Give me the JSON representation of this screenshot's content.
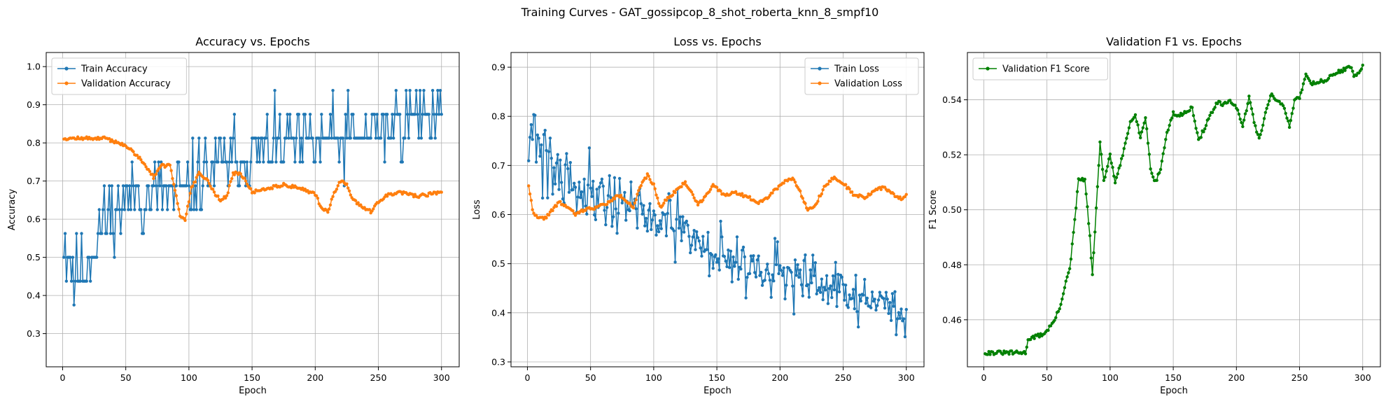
{
  "suptitle": "Training Curves - GAT_gossipcop_8_shot_roberta_knn_8_smpf10",
  "chart_data": [
    {
      "type": "line",
      "title": "Accuracy vs. Epochs",
      "xlabel": "Epoch",
      "ylabel": "Accuracy",
      "xlim": [
        -13,
        314
      ],
      "ylim": [
        0.213,
        1.037
      ],
      "xticks": [
        0,
        50,
        100,
        150,
        200,
        250,
        300
      ],
      "yticks": [
        0.3,
        0.4,
        0.5,
        0.6,
        0.7,
        0.8,
        0.9,
        1.0
      ],
      "ytick_labels": [
        "0.3",
        "0.4",
        "0.5",
        "0.6",
        "0.7",
        "0.8",
        "0.9",
        "1.0"
      ],
      "grid": true,
      "legend_position": "upper-left",
      "series": [
        {
          "name": "Train Accuracy",
          "color": "#1f77b4",
          "generator": "noisy",
          "seed": 11,
          "anchors": [
            [
              1,
              0.56
            ],
            [
              10,
              0.45
            ],
            [
              20,
              0.48
            ],
            [
              30,
              0.58
            ],
            [
              40,
              0.62
            ],
            [
              50,
              0.65
            ],
            [
              60,
              0.66
            ],
            [
              70,
              0.66
            ],
            [
              80,
              0.68
            ],
            [
              90,
              0.66
            ],
            [
              100,
              0.68
            ],
            [
              120,
              0.74
            ],
            [
              150,
              0.78
            ],
            [
              200,
              0.8
            ],
            [
              250,
              0.83
            ],
            [
              300,
              0.9
            ]
          ],
          "noise": [
            [
              1,
              0.1
            ],
            [
              60,
              0.09
            ],
            [
              100,
              0.085
            ],
            [
              300,
              0.07
            ]
          ],
          "steps": [
            0.0625,
            0.125,
            0.25,
            0.375,
            0.4375,
            0.5,
            0.5625,
            0.625,
            0.6875,
            0.75,
            0.8125,
            0.875,
            0.9375,
            1.0
          ]
        },
        {
          "name": "Validation Accuracy",
          "color": "#ff7f0e",
          "generator": "smooth",
          "seed": 12,
          "anchors": [
            [
              1,
              0.812
            ],
            [
              33,
              0.812
            ],
            [
              45,
              0.8
            ],
            [
              55,
              0.78
            ],
            [
              65,
              0.745
            ],
            [
              72,
              0.71
            ],
            [
              78,
              0.74
            ],
            [
              85,
              0.74
            ],
            [
              90,
              0.66
            ],
            [
              93,
              0.61
            ],
            [
              97,
              0.6
            ],
            [
              102,
              0.68
            ],
            [
              108,
              0.72
            ],
            [
              115,
              0.7
            ],
            [
              120,
              0.67
            ],
            [
              125,
              0.65
            ],
            [
              130,
              0.66
            ],
            [
              135,
              0.72
            ],
            [
              140,
              0.72
            ],
            [
              145,
              0.7
            ],
            [
              150,
              0.67
            ],
            [
              160,
              0.68
            ],
            [
              175,
              0.69
            ],
            [
              190,
              0.68
            ],
            [
              200,
              0.665
            ],
            [
              205,
              0.63
            ],
            [
              210,
              0.62
            ],
            [
              215,
              0.67
            ],
            [
              220,
              0.7
            ],
            [
              225,
              0.69
            ],
            [
              230,
              0.65
            ],
            [
              238,
              0.63
            ],
            [
              244,
              0.62
            ],
            [
              250,
              0.645
            ],
            [
              258,
              0.665
            ],
            [
              270,
              0.67
            ],
            [
              280,
              0.66
            ],
            [
              290,
              0.665
            ],
            [
              300,
              0.672
            ]
          ],
          "jitter": 0.004
        }
      ]
    },
    {
      "type": "line",
      "title": "Loss vs. Epochs",
      "xlabel": "Epoch",
      "ylabel": "Loss",
      "xlim": [
        -13,
        314
      ],
      "ylim": [
        0.29,
        0.93
      ],
      "xticks": [
        0,
        50,
        100,
        150,
        200,
        250,
        300
      ],
      "yticks": [
        0.3,
        0.4,
        0.5,
        0.6,
        0.7,
        0.8,
        0.9
      ],
      "ytick_labels": [
        "0.3",
        "0.4",
        "0.5",
        "0.6",
        "0.7",
        "0.8",
        "0.9"
      ],
      "grid": true,
      "legend_position": "upper-right",
      "series": [
        {
          "name": "Train Loss",
          "color": "#1f77b4",
          "generator": "noisy",
          "seed": 21,
          "anchors": [
            [
              1,
              0.8
            ],
            [
              10,
              0.74
            ],
            [
              20,
              0.7
            ],
            [
              40,
              0.66
            ],
            [
              60,
              0.64
            ],
            [
              80,
              0.62
            ],
            [
              100,
              0.59
            ],
            [
              120,
              0.57
            ],
            [
              150,
              0.52
            ],
            [
              175,
              0.5
            ],
            [
              200,
              0.48
            ],
            [
              225,
              0.46
            ],
            [
              250,
              0.44
            ],
            [
              275,
              0.42
            ],
            [
              300,
              0.4
            ]
          ],
          "noise": [
            [
              1,
              0.09
            ],
            [
              40,
              0.06
            ],
            [
              100,
              0.05
            ],
            [
              300,
              0.045
            ]
          ]
        },
        {
          "name": "Validation Loss",
          "color": "#ff7f0e",
          "generator": "smooth",
          "seed": 22,
          "anchors": [
            [
              1,
              0.66
            ],
            [
              4,
              0.61
            ],
            [
              8,
              0.592
            ],
            [
              14,
              0.593
            ],
            [
              20,
              0.61
            ],
            [
              25,
              0.625
            ],
            [
              32,
              0.615
            ],
            [
              38,
              0.6
            ],
            [
              45,
              0.61
            ],
            [
              55,
              0.615
            ],
            [
              65,
              0.625
            ],
            [
              72,
              0.64
            ],
            [
              78,
              0.63
            ],
            [
              84,
              0.615
            ],
            [
              89,
              0.655
            ],
            [
              95,
              0.68
            ],
            [
              100,
              0.66
            ],
            [
              105,
              0.615
            ],
            [
              110,
              0.63
            ],
            [
              118,
              0.65
            ],
            [
              125,
              0.665
            ],
            [
              130,
              0.645
            ],
            [
              135,
              0.62
            ],
            [
              140,
              0.635
            ],
            [
              147,
              0.66
            ],
            [
              155,
              0.64
            ],
            [
              165,
              0.645
            ],
            [
              175,
              0.635
            ],
            [
              183,
              0.625
            ],
            [
              190,
              0.635
            ],
            [
              198,
              0.655
            ],
            [
              205,
              0.67
            ],
            [
              210,
              0.675
            ],
            [
              217,
              0.64
            ],
            [
              222,
              0.61
            ],
            [
              228,
              0.62
            ],
            [
              235,
              0.655
            ],
            [
              242,
              0.675
            ],
            [
              250,
              0.665
            ],
            [
              258,
              0.64
            ],
            [
              268,
              0.635
            ],
            [
              275,
              0.65
            ],
            [
              282,
              0.655
            ],
            [
              290,
              0.64
            ],
            [
              296,
              0.633
            ],
            [
              300,
              0.64
            ]
          ],
          "jitter": 0.003
        }
      ]
    },
    {
      "type": "line",
      "title": "Validation F1 vs. Epochs",
      "xlabel": "Epoch",
      "ylabel": "F1 Score",
      "xlim": [
        -13,
        314
      ],
      "ylim": [
        0.4429,
        0.5572
      ],
      "xticks": [
        0,
        50,
        100,
        150,
        200,
        250,
        300
      ],
      "yticks": [
        0.46,
        0.48,
        0.5,
        0.52,
        0.54
      ],
      "ytick_labels": [
        "0.46",
        "0.48",
        "0.50",
        "0.52",
        "0.54"
      ],
      "grid": true,
      "legend_position": "upper-left",
      "series": [
        {
          "name": "Validation F1 Score",
          "color": "#008000",
          "generator": "smooth",
          "seed": 31,
          "anchors": [
            [
              1,
              0.448
            ],
            [
              33,
              0.448
            ],
            [
              35,
              0.453
            ],
            [
              42,
              0.454
            ],
            [
              48,
              0.455
            ],
            [
              55,
              0.459
            ],
            [
              60,
              0.464
            ],
            [
              65,
              0.474
            ],
            [
              68,
              0.478
            ],
            [
              72,
              0.496
            ],
            [
              75,
              0.511
            ],
            [
              80,
              0.511
            ],
            [
              84,
              0.49
            ],
            [
              86,
              0.476
            ],
            [
              89,
              0.5
            ],
            [
              92,
              0.525
            ],
            [
              95,
              0.51
            ],
            [
              100,
              0.52
            ],
            [
              104,
              0.51
            ],
            [
              108,
              0.516
            ],
            [
              112,
              0.524
            ],
            [
              116,
              0.532
            ],
            [
              120,
              0.535
            ],
            [
              124,
              0.526
            ],
            [
              128,
              0.534
            ],
            [
              132,
              0.515
            ],
            [
              136,
              0.51
            ],
            [
              140,
              0.515
            ],
            [
              145,
              0.528
            ],
            [
              150,
              0.535
            ],
            [
              155,
              0.534
            ],
            [
              160,
              0.536
            ],
            [
              165,
              0.537
            ],
            [
              170,
              0.525
            ],
            [
              175,
              0.53
            ],
            [
              180,
              0.535
            ],
            [
              185,
              0.539
            ],
            [
              190,
              0.538
            ],
            [
              195,
              0.54
            ],
            [
              200,
              0.537
            ],
            [
              205,
              0.53
            ],
            [
              210,
              0.541
            ],
            [
              215,
              0.53
            ],
            [
              218,
              0.526
            ],
            [
              222,
              0.533
            ],
            [
              227,
              0.542
            ],
            [
              232,
              0.54
            ],
            [
              238,
              0.537
            ],
            [
              242,
              0.53
            ],
            [
              246,
              0.54
            ],
            [
              250,
              0.541
            ],
            [
              255,
              0.549
            ],
            [
              260,
              0.546
            ],
            [
              270,
              0.547
            ],
            [
              280,
              0.55
            ],
            [
              290,
              0.552
            ],
            [
              293,
              0.549
            ],
            [
              297,
              0.55
            ],
            [
              300,
              0.552
            ]
          ],
          "jitter": 0.0007
        }
      ]
    }
  ]
}
